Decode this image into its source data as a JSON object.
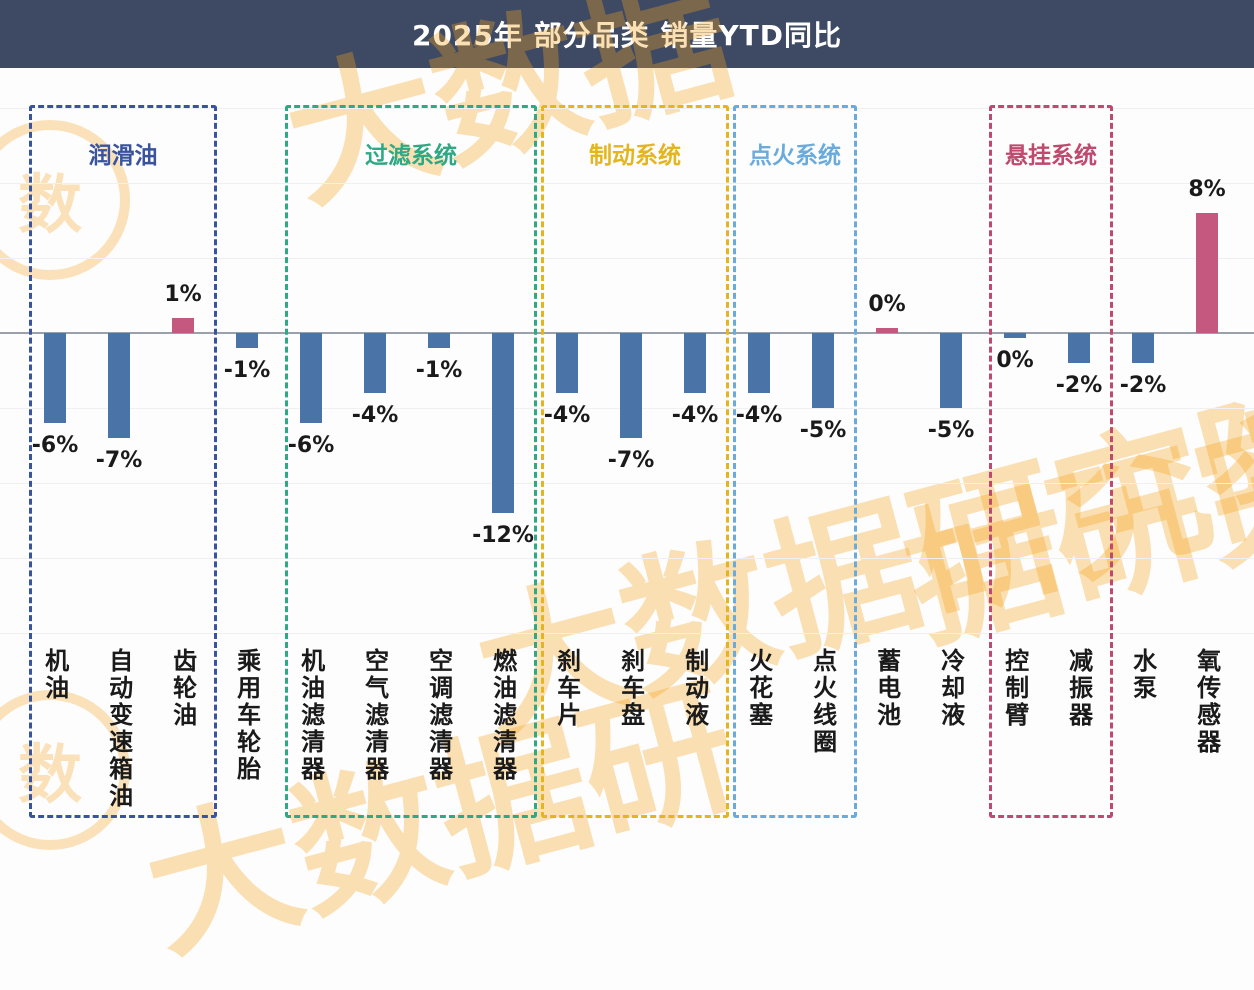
{
  "header": {
    "title": "2025年 部分品类 销量YTD同比"
  },
  "watermark": {
    "text": "大数据研究院",
    "color": "#f5a31e"
  },
  "chart_data": {
    "type": "bar",
    "title": "2025年 部分品类 销量YTD同比",
    "unit": "%",
    "ylim": [
      -13,
      9
    ],
    "grid": true,
    "categories": [
      "机油",
      "自动变速箱油",
      "齿轮油",
      "乘用车轮胎",
      "机油滤清器",
      "空气滤清器",
      "空调滤清器",
      "燃油滤清器",
      "刹车片",
      "刹车盘",
      "制动液",
      "火花塞",
      "点火线圈",
      "蓄电池",
      "冷却液",
      "控制臂",
      "减振器",
      "水泵",
      "氧传感器"
    ],
    "values": [
      -6,
      -7,
      1,
      -1,
      -6,
      -4,
      -1,
      -12,
      -4,
      -7,
      -4,
      -4,
      -5,
      0,
      -5,
      0,
      -2,
      -2,
      8
    ],
    "value_labels": [
      "-6%",
      "-7%",
      "1%",
      "-1%",
      "-6%",
      "-4%",
      "-1%",
      "-12%",
      "-4%",
      "-7%",
      "-4%",
      "-4%",
      "-5%",
      "0%",
      "-5%",
      "0%",
      "-2%",
      "-2%",
      "8%"
    ],
    "bar_directions": [
      "down",
      "down",
      "up",
      "down",
      "down",
      "down",
      "down",
      "down",
      "down",
      "down",
      "down",
      "down",
      "down",
      "up",
      "down",
      "down",
      "down",
      "down",
      "up"
    ],
    "colors": {
      "positive": "#c4587e",
      "negative": "#4a74a8"
    },
    "groups": [
      {
        "label": "润滑油",
        "color": "#39549c",
        "start": 0,
        "end": 2
      },
      {
        "label": "过滤系统",
        "color": "#2fa884",
        "start": 4,
        "end": 7
      },
      {
        "label": "制动系统",
        "color": "#e3b520",
        "start": 8,
        "end": 10
      },
      {
        "label": "点火系统",
        "color": "#6aabdc",
        "start": 11,
        "end": 12
      },
      {
        "label": "悬挂系统",
        "color": "#bf4a70",
        "start": 15,
        "end": 16
      }
    ]
  }
}
